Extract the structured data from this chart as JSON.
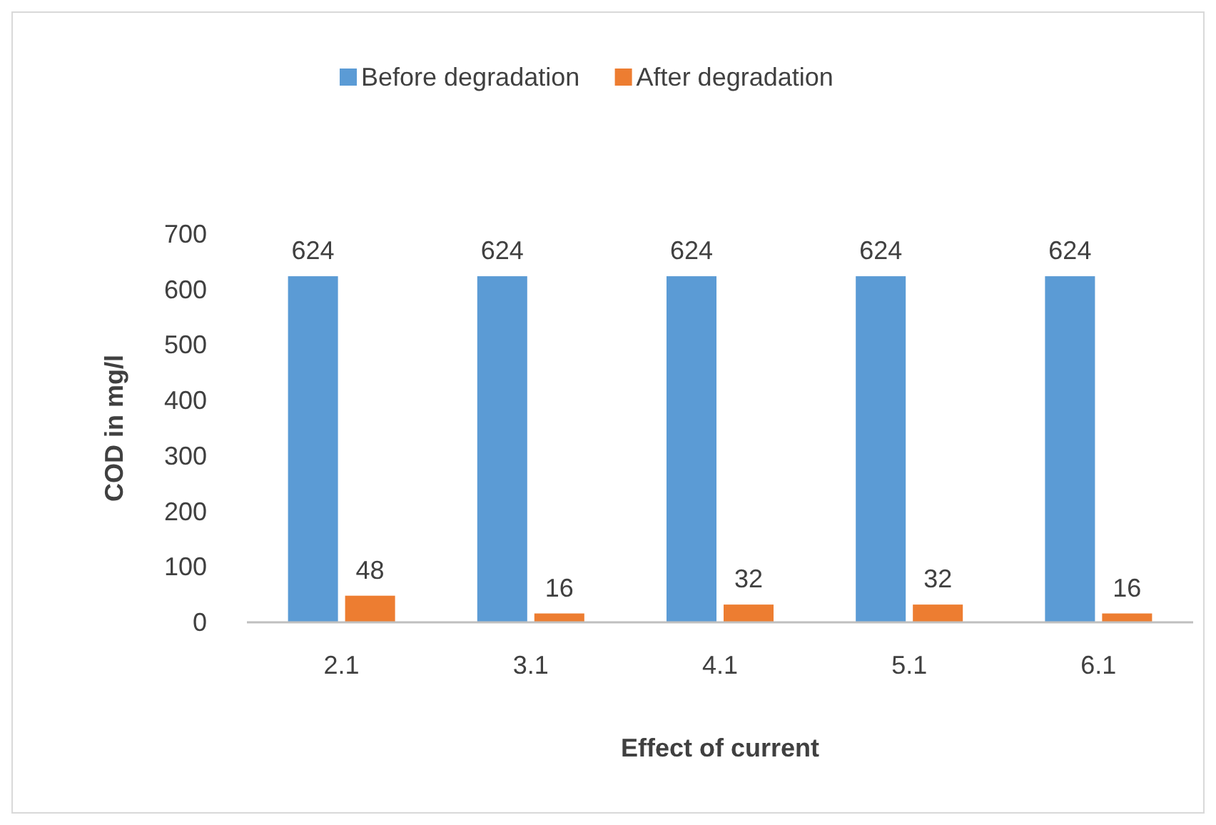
{
  "chart_data": {
    "type": "bar",
    "xlabel": "Effect of current",
    "ylabel": "COD in mg/l",
    "categories": [
      "2.1",
      "3.1",
      "4.1",
      "5.1",
      "6.1"
    ],
    "series": [
      {
        "name": "Before degradation",
        "color": "#5b9bd5",
        "values": [
          624,
          624,
          624,
          624,
          624
        ]
      },
      {
        "name": "After degradation",
        "color": "#ed7d31",
        "values": [
          48,
          16,
          32,
          32,
          16
        ]
      }
    ],
    "ylim": [
      0,
      700
    ],
    "yticks": [
      0,
      100,
      200,
      300,
      400,
      500,
      600,
      700
    ],
    "grid": false,
    "legend": "top",
    "data_labels": true
  }
}
